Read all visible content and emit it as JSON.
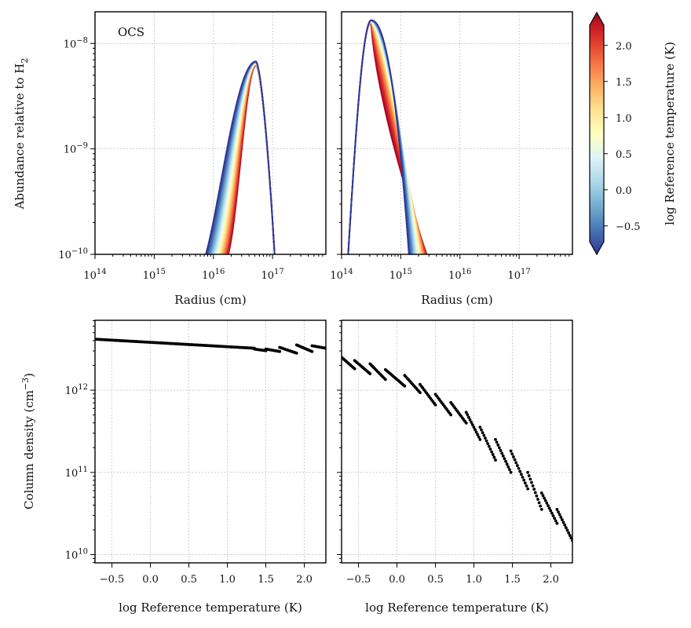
{
  "chart_data": [
    {
      "type": "line",
      "panel": "top-left",
      "annotation": "OCS",
      "xlabel": "Radius (cm)",
      "ylabel": "Abundance relative to H",
      "ylabel_sub": "2",
      "xscale": "log",
      "yscale": "log",
      "xlim_exp": [
        14,
        17.9
      ],
      "ylim_exp": [
        -10,
        -7.7
      ],
      "x_tick_exps": [
        14,
        15,
        16,
        17
      ],
      "y_tick_exps": [
        -10,
        -9,
        -8
      ],
      "tick_label_prefix": "10",
      "curve_shape": {
        "rise_start_exp_cool": 15.8,
        "rise_start_exp_warm": 16.15,
        "peak_exp": 16.72,
        "peak_abundance_exp": -8.17,
        "fall_end_exp": 17.05
      }
    },
    {
      "type": "line",
      "panel": "top-right",
      "xlabel": "Radius (cm)",
      "xscale": "log",
      "yscale": "log",
      "xlim_exp": [
        14,
        17.9
      ],
      "ylim_exp": [
        -10,
        -7.7
      ],
      "x_tick_exps": [
        14,
        15,
        16,
        17
      ],
      "tick_label_prefix": "10",
      "curve_shape": {
        "rise_start_exp": 14.1,
        "peak_exp": 14.5,
        "peak_abundance_exp": -7.78,
        "fall_end_exp_cool": 15.15,
        "fall_end_exp_warm": 15.5
      }
    },
    {
      "type": "scatter",
      "panel": "bottom-left",
      "xlabel": "log Reference temperature (K)",
      "ylabel": "Column density (cm",
      "ylabel_sup": "−3",
      "ylabel_end": ")",
      "xlim": [
        -0.72,
        2.28
      ],
      "ylim_exp": [
        9.9,
        12.85
      ],
      "x_ticks": [
        -0.5,
        0.0,
        0.5,
        1.0,
        1.5,
        2.0
      ],
      "x_tick_labels": [
        "−0.5",
        "0.0",
        "0.5",
        "1.0",
        "1.5",
        "2.0"
      ],
      "y_tick_exps": [
        10,
        11,
        12
      ],
      "tick_label_prefix": "10",
      "segments": [
        {
          "x_start": -0.72,
          "x_end": 1.35,
          "log_y_start": 12.62,
          "log_y_end": 12.51
        },
        {
          "x_start": 1.35,
          "x_end": 1.5,
          "log_y_start": 12.5,
          "log_y_end": 12.48
        },
        {
          "x_start": 1.5,
          "x_end": 1.68,
          "log_y_start": 12.5,
          "log_y_end": 12.47
        },
        {
          "x_start": 1.68,
          "x_end": 1.9,
          "log_y_start": 12.52,
          "log_y_end": 12.45
        },
        {
          "x_start": 1.9,
          "x_end": 2.1,
          "log_y_start": 12.55,
          "log_y_end": 12.47
        },
        {
          "x_start": 2.1,
          "x_end": 2.28,
          "log_y_start": 12.54,
          "log_y_end": 12.51
        }
      ]
    },
    {
      "type": "scatter",
      "panel": "bottom-right",
      "xlabel": "log Reference temperature (K)",
      "xlim": [
        -0.72,
        2.28
      ],
      "ylim_exp": [
        9.9,
        12.85
      ],
      "x_ticks": [
        -0.5,
        0.0,
        0.5,
        1.0,
        1.5,
        2.0
      ],
      "x_tick_labels": [
        "−0.5",
        "0.0",
        "0.5",
        "1.0",
        "1.5",
        "2.0"
      ],
      "segments": [
        {
          "x_start": -0.72,
          "x_end": -0.55,
          "log_y_start": 12.4,
          "log_y_end": 12.26
        },
        {
          "x_start": -0.55,
          "x_end": -0.35,
          "log_y_start": 12.36,
          "log_y_end": 12.2
        },
        {
          "x_start": -0.35,
          "x_end": -0.15,
          "log_y_start": 12.32,
          "log_y_end": 12.13
        },
        {
          "x_start": -0.15,
          "x_end": 0.1,
          "log_y_start": 12.25,
          "log_y_end": 12.05
        },
        {
          "x_start": 0.1,
          "x_end": 0.3,
          "log_y_start": 12.18,
          "log_y_end": 11.97
        },
        {
          "x_start": 0.3,
          "x_end": 0.5,
          "log_y_start": 12.07,
          "log_y_end": 11.82
        },
        {
          "x_start": 0.5,
          "x_end": 0.7,
          "log_y_start": 11.95,
          "log_y_end": 11.7
        },
        {
          "x_start": 0.7,
          "x_end": 0.9,
          "log_y_start": 11.85,
          "log_y_end": 11.6
        },
        {
          "x_start": 0.9,
          "x_end": 1.08,
          "log_y_start": 11.73,
          "log_y_end": 11.4
        },
        {
          "x_start": 1.08,
          "x_end": 1.28,
          "log_y_start": 11.55,
          "log_y_end": 11.15
        },
        {
          "x_start": 1.28,
          "x_end": 1.48,
          "log_y_start": 11.4,
          "log_y_end": 11.0
        },
        {
          "x_start": 1.48,
          "x_end": 1.7,
          "log_y_start": 11.26,
          "log_y_end": 10.8
        },
        {
          "x_start": 1.7,
          "x_end": 1.88,
          "log_y_start": 11.0,
          "log_y_end": 10.55
        },
        {
          "x_start": 1.88,
          "x_end": 2.08,
          "log_y_start": 10.75,
          "log_y_end": 10.38
        },
        {
          "x_start": 2.08,
          "x_end": 2.28,
          "log_y_start": 10.55,
          "log_y_end": 10.17
        }
      ]
    }
  ],
  "colorbar": {
    "label": "log Reference temperature (K)",
    "colormap": "RdYlBu_r",
    "range": [
      -0.72,
      2.28
    ],
    "ticks": [
      -0.5,
      0.0,
      0.5,
      1.0,
      1.5,
      2.0
    ],
    "tick_labels": [
      "−0.5",
      "0.0",
      "0.5",
      "1.0",
      "1.5",
      "2.0"
    ],
    "extend": "both",
    "stops": [
      "#313695",
      "#4575b4",
      "#74add1",
      "#abd9e9",
      "#e0f3f8",
      "#ffffbf",
      "#fee090",
      "#fdae61",
      "#f46d43",
      "#d73027",
      "#a50026"
    ]
  }
}
